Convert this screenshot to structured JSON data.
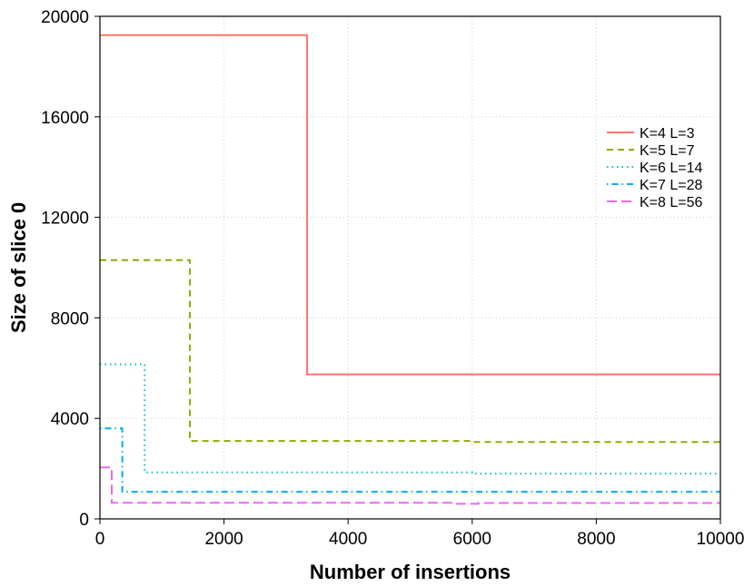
{
  "chart_data": {
    "type": "line",
    "title": "",
    "xlabel": "Number of insertions",
    "ylabel": "Size of slice 0",
    "xlim": [
      0,
      10000
    ],
    "ylim": [
      0,
      20000
    ],
    "xticks": [
      0,
      2000,
      4000,
      6000,
      8000,
      10000
    ],
    "yticks": [
      0,
      4000,
      8000,
      12000,
      16000,
      20000
    ],
    "grid": true,
    "legend_position": "right",
    "series": [
      {
        "name": "K=4  L=3",
        "color": "#F8766D",
        "dash": "solid",
        "points": [
          [
            0,
            19250
          ],
          [
            3340,
            19250
          ],
          [
            3340,
            5750
          ],
          [
            10000,
            5750
          ]
        ]
      },
      {
        "name": "K=5  L=7",
        "color": "#93AA00",
        "dash": "dashed",
        "points": [
          [
            0,
            10300
          ],
          [
            1450,
            10300
          ],
          [
            1450,
            3100
          ],
          [
            6000,
            3100
          ],
          [
            6000,
            3060
          ],
          [
            10000,
            3060
          ]
        ]
      },
      {
        "name": "K=6  L=14",
        "color": "#00BFC4",
        "dash": "dotted",
        "points": [
          [
            0,
            6150
          ],
          [
            720,
            6150
          ],
          [
            720,
            1850
          ],
          [
            6000,
            1850
          ],
          [
            6000,
            1800
          ],
          [
            10000,
            1800
          ]
        ]
      },
      {
        "name": "K=7  L=28",
        "color": "#00A9FF",
        "dash": "dotdash",
        "points": [
          [
            0,
            3600
          ],
          [
            360,
            3600
          ],
          [
            360,
            1080
          ],
          [
            10000,
            1080
          ]
        ]
      },
      {
        "name": "K=8  L=56",
        "color": "#E76BF3",
        "dash": "longdash",
        "points": [
          [
            0,
            2050
          ],
          [
            190,
            2050
          ],
          [
            190,
            640
          ],
          [
            5700,
            640
          ],
          [
            5700,
            600
          ],
          [
            6100,
            600
          ],
          [
            6100,
            630
          ],
          [
            10000,
            630
          ]
        ]
      }
    ]
  }
}
